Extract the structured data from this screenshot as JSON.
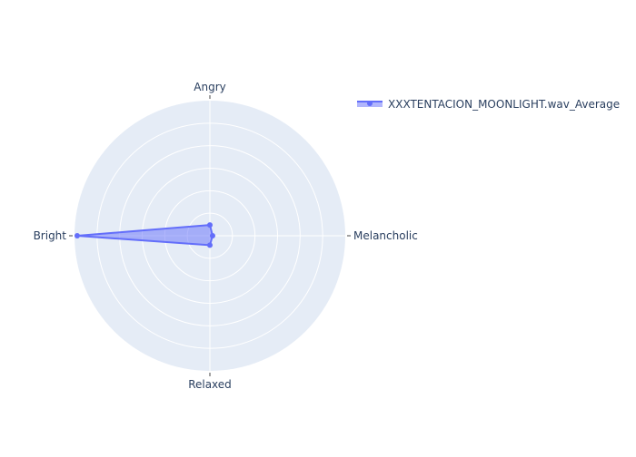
{
  "chart_data": {
    "type": "radar",
    "categories": [
      "Melancholic",
      "Angry",
      "Bright",
      "Relaxed"
    ],
    "series": [
      {
        "name": "XXXTENTACION_MOONLIGHT.wav_Average",
        "values": [
          0.02,
          0.08,
          0.98,
          0.07
        ],
        "color": "#636efa",
        "fill": true
      }
    ],
    "radial_range": [
      0,
      1
    ],
    "grid": true,
    "legend_position": "top-right"
  },
  "colors": {
    "polar_background": "#e5ecf6",
    "grid": "#ffffff",
    "text": "#2a3f5f",
    "series_line": "#636efa",
    "series_fill": "rgba(99,110,250,0.5)"
  }
}
